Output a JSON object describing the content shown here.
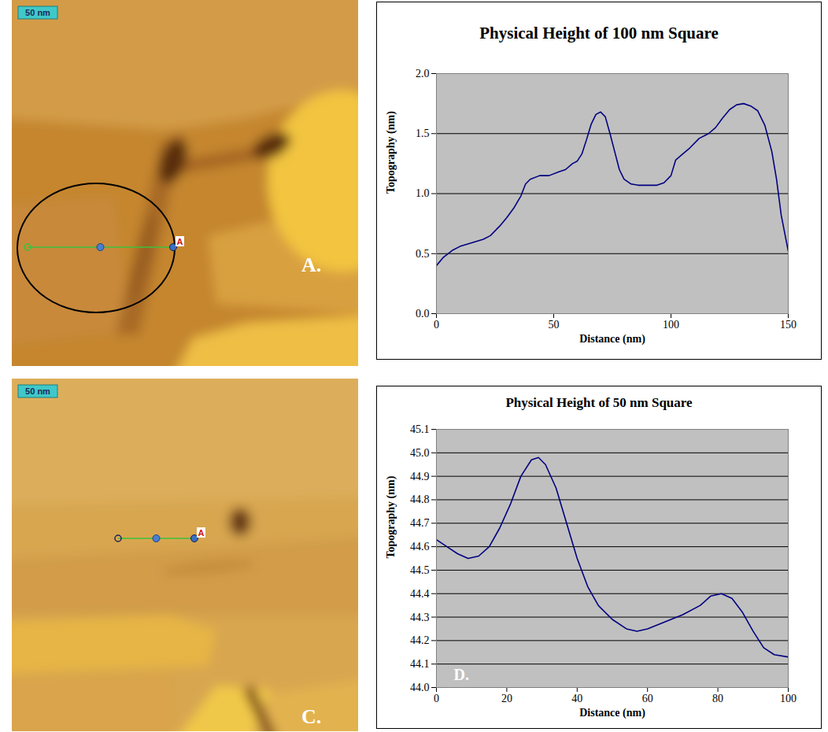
{
  "chart_data": [
    {
      "type": "line",
      "title": "Physical Height of 100 nm Square",
      "x_label": "Distance (nm)",
      "y_label": "Topography (nm)",
      "x": [
        0,
        3,
        7,
        10,
        15,
        20,
        23,
        27,
        30,
        33,
        36,
        38,
        40,
        44,
        48,
        52,
        55,
        58,
        60,
        62,
        64,
        66,
        68,
        70,
        72,
        74,
        76,
        78,
        80,
        83,
        86,
        90,
        94,
        97,
        100,
        102,
        105,
        108,
        112,
        116,
        119,
        122,
        125,
        128,
        131,
        134,
        137,
        140,
        143,
        145,
        147,
        149,
        150
      ],
      "values": [
        0.4,
        0.47,
        0.53,
        0.56,
        0.59,
        0.62,
        0.65,
        0.73,
        0.8,
        0.88,
        0.98,
        1.08,
        1.12,
        1.15,
        1.15,
        1.18,
        1.2,
        1.25,
        1.27,
        1.33,
        1.45,
        1.58,
        1.66,
        1.68,
        1.64,
        1.5,
        1.35,
        1.2,
        1.12,
        1.08,
        1.07,
        1.07,
        1.07,
        1.09,
        1.15,
        1.28,
        1.33,
        1.38,
        1.46,
        1.5,
        1.55,
        1.63,
        1.7,
        1.74,
        1.75,
        1.73,
        1.69,
        1.57,
        1.35,
        1.12,
        0.82,
        0.62,
        0.52
      ],
      "color": "#000080",
      "xlim": [
        0,
        150
      ],
      "ylim": [
        0,
        2
      ],
      "xticks": [
        0,
        50,
        100,
        150
      ],
      "yticks": [
        {
          "value": 0,
          "label": "0.0"
        },
        0.5,
        {
          "value": 1,
          "label": "1.0"
        },
        1.5,
        {
          "value": 2,
          "label": "2.0"
        }
      ],
      "grid": true
    },
    {
      "type": "line",
      "title": "Physical Height of 50 nm Square",
      "x_label": "Distance (nm)",
      "y_label": "Topography (nm)",
      "panel_label": "D.",
      "x": [
        0,
        3,
        6,
        9,
        12,
        15,
        18,
        21,
        24,
        27,
        29,
        31,
        34,
        37,
        40,
        43,
        46,
        50,
        54,
        57,
        60,
        65,
        70,
        75,
        78,
        81,
        84,
        87,
        90,
        93,
        96,
        100
      ],
      "values": [
        44.63,
        44.6,
        44.57,
        44.55,
        44.56,
        44.6,
        44.68,
        44.78,
        44.9,
        44.97,
        44.98,
        44.95,
        44.85,
        44.7,
        44.55,
        44.43,
        44.35,
        44.29,
        44.25,
        44.24,
        44.25,
        44.28,
        44.31,
        44.35,
        44.39,
        44.4,
        44.38,
        44.32,
        44.24,
        44.17,
        44.14,
        44.13
      ],
      "color": "#000080",
      "xlim": [
        0,
        100
      ],
      "ylim": [
        44,
        45.1
      ],
      "xticks": [
        0,
        20,
        40,
        60,
        80,
        100
      ],
      "yticks": [
        {
          "value": 44,
          "label": "44.0"
        },
        44.1,
        44.2,
        44.3,
        44.4,
        44.5,
        44.6,
        44.7,
        44.8,
        44.9,
        {
          "value": 45,
          "label": "45.0"
        },
        45.1
      ],
      "grid": true
    }
  ],
  "images": [
    {
      "scale_bar": "50 nm",
      "marker": "A",
      "panel_label": "A."
    },
    {
      "scale_bar": "50 nm",
      "marker": "A",
      "panel_label": "C."
    }
  ]
}
